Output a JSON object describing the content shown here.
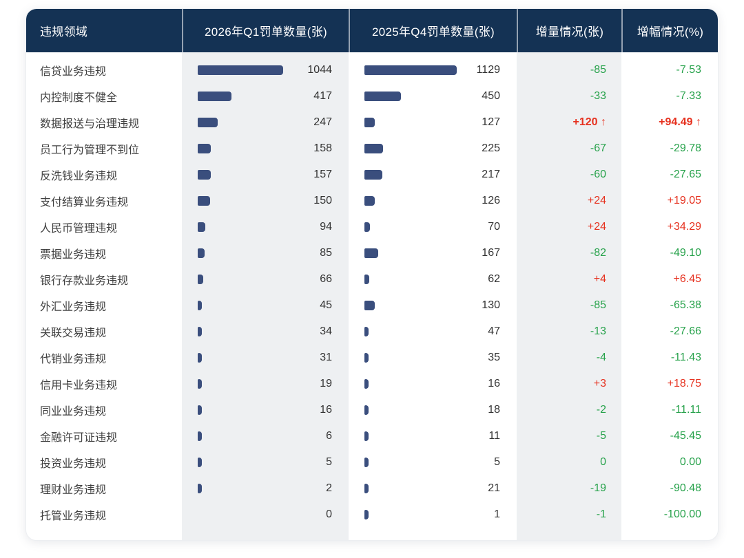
{
  "colors": {
    "header_bg": "#143254",
    "bar_fill": "#3a4e7d",
    "column_stripe_bg": "#eef0f2",
    "increase_red": "#e6311f",
    "decrease_green": "#27a24b"
  },
  "table": {
    "headers": [
      "违规领域",
      "2026年Q1罚单数量(张)",
      "2025年Q4罚单数量(张)",
      "增量情况(张)",
      "增幅情况(%)"
    ],
    "rows": [
      {
        "label": "信贷业务违规",
        "q1": 1044,
        "q4": 1129,
        "delta": "-85",
        "delta_pct": "-7.53",
        "color": "green",
        "bold": false
      },
      {
        "label": "内控制度不健全",
        "q1": 417,
        "q4": 450,
        "delta": "-33",
        "delta_pct": "-7.33",
        "color": "green",
        "bold": false
      },
      {
        "label": "数据报送与治理违规",
        "q1": 247,
        "q4": 127,
        "delta": "+120 ↑",
        "delta_pct": "+94.49 ↑",
        "color": "red",
        "bold": true
      },
      {
        "label": "员工行为管理不到位",
        "q1": 158,
        "q4": 225,
        "delta": "-67",
        "delta_pct": "-29.78",
        "color": "green",
        "bold": false
      },
      {
        "label": "反洗钱业务违规",
        "q1": 157,
        "q4": 217,
        "delta": "-60",
        "delta_pct": "-27.65",
        "color": "green",
        "bold": false
      },
      {
        "label": "支付结算业务违规",
        "q1": 150,
        "q4": 126,
        "delta": "+24",
        "delta_pct": "+19.05",
        "color": "red",
        "bold": false
      },
      {
        "label": "人民币管理违规",
        "q1": 94,
        "q4": 70,
        "delta": "+24",
        "delta_pct": "+34.29",
        "color": "red",
        "bold": false
      },
      {
        "label": "票据业务违规",
        "q1": 85,
        "q4": 167,
        "delta": "-82",
        "delta_pct": "-49.10",
        "color": "green",
        "bold": false
      },
      {
        "label": "银行存款业务违规",
        "q1": 66,
        "q4": 62,
        "delta": "+4",
        "delta_pct": "+6.45",
        "color": "red",
        "bold": false
      },
      {
        "label": "外汇业务违规",
        "q1": 45,
        "q4": 130,
        "delta": "-85",
        "delta_pct": "-65.38",
        "color": "green",
        "bold": false
      },
      {
        "label": "关联交易违规",
        "q1": 34,
        "q4": 47,
        "delta": "-13",
        "delta_pct": "-27.66",
        "color": "green",
        "bold": false
      },
      {
        "label": "代销业务违规",
        "q1": 31,
        "q4": 35,
        "delta": "-4",
        "delta_pct": "-11.43",
        "color": "green",
        "bold": false
      },
      {
        "label": "信用卡业务违规",
        "q1": 19,
        "q4": 16,
        "delta": "+3",
        "delta_pct": "+18.75",
        "color": "red",
        "bold": false
      },
      {
        "label": "同业业务违规",
        "q1": 16,
        "q4": 18,
        "delta": "-2",
        "delta_pct": "-11.11",
        "color": "green",
        "bold": false
      },
      {
        "label": "金融许可证违规",
        "q1": 6,
        "q4": 11,
        "delta": "-5",
        "delta_pct": "-45.45",
        "color": "green",
        "bold": false
      },
      {
        "label": "投资业务违规",
        "q1": 5,
        "q4": 5,
        "delta": "0",
        "delta_pct": "0.00",
        "color": "green",
        "bold": false
      },
      {
        "label": "理财业务违规",
        "q1": 2,
        "q4": 21,
        "delta": "-19",
        "delta_pct": "-90.48",
        "color": "green",
        "bold": false
      },
      {
        "label": "托管业务违规",
        "q1": 0,
        "q4": 1,
        "delta": "-1",
        "delta_pct": "-100.00",
        "color": "green",
        "bold": false
      }
    ]
  },
  "chart_data": {
    "type": "bar",
    "orientation": "horizontal",
    "title": "",
    "categories": [
      "信贷业务违规",
      "内控制度不健全",
      "数据报送与治理违规",
      "员工行为管理不到位",
      "反洗钱业务违规",
      "支付结算业务违规",
      "人民币管理违规",
      "票据业务违规",
      "银行存款业务违规",
      "外汇业务违规",
      "关联交易违规",
      "代销业务违规",
      "信用卡业务违规",
      "同业业务违规",
      "金融许可证违规",
      "投资业务违规",
      "理财业务违规",
      "托管业务违规"
    ],
    "series": [
      {
        "name": "2026年Q1罚单数量(张)",
        "values": [
          1044,
          417,
          247,
          158,
          157,
          150,
          94,
          85,
          66,
          45,
          34,
          31,
          19,
          16,
          6,
          5,
          2,
          0
        ]
      },
      {
        "name": "2025年Q4罚单数量(张)",
        "values": [
          1129,
          450,
          127,
          225,
          217,
          126,
          70,
          167,
          62,
          130,
          47,
          35,
          16,
          18,
          11,
          5,
          21,
          1
        ]
      }
    ],
    "delta_values": [
      -85,
      -33,
      120,
      -67,
      -60,
      24,
      24,
      -82,
      4,
      -85,
      -13,
      -4,
      3,
      -2,
      -5,
      0,
      -19,
      -1
    ],
    "delta_pct_values": [
      -7.53,
      -7.33,
      94.49,
      -29.78,
      -27.65,
      19.05,
      34.29,
      -49.1,
      6.45,
      -65.38,
      -27.66,
      -11.43,
      18.75,
      -11.11,
      -45.45,
      0.0,
      -90.48,
      -100.0
    ],
    "xlim": [
      0,
      1129
    ],
    "value_labels": true,
    "grid": false,
    "legend_position": "column-headers",
    "positive_color": "#e6311f",
    "negative_color": "#27a24b",
    "bar_color": "#3a4e7d"
  }
}
